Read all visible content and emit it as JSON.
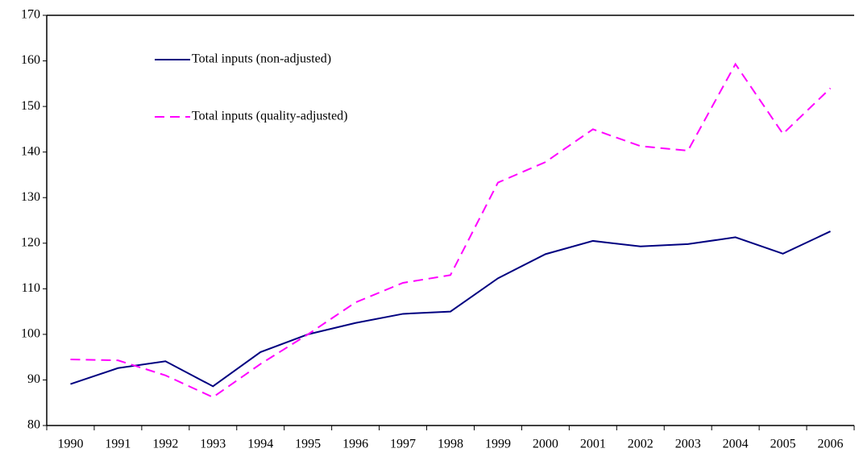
{
  "chart_data": {
    "type": "line",
    "categories": [
      "1990",
      "1991",
      "1992",
      "1993",
      "1994",
      "1995",
      "1996",
      "1997",
      "1998",
      "1999",
      "2000",
      "2001",
      "2002",
      "2003",
      "2004",
      "2005",
      "2006"
    ],
    "series": [
      {
        "name": "Total inputs (non-adjusted)",
        "color": "#000080",
        "dash": false,
        "values": [
          89.1,
          92.6,
          94.1,
          88.6,
          96.1,
          100,
          102.5,
          104.5,
          105,
          112.3,
          117.6,
          120.5,
          119.3,
          119.8,
          121.3,
          117.7,
          122.6
        ]
      },
      {
        "name": "Total inputs (quality-adjusted)",
        "color": "#ff00ff",
        "dash": true,
        "values": [
          94.5,
          94.3,
          91,
          86.2,
          93.5,
          100,
          107,
          111.3,
          113,
          133.3,
          137.8,
          145,
          141.3,
          140.3,
          159.3,
          144,
          154
        ]
      }
    ],
    "ylim": [
      80,
      170
    ],
    "yticks": [
      80,
      90,
      100,
      110,
      120,
      130,
      140,
      150,
      160,
      170
    ]
  }
}
